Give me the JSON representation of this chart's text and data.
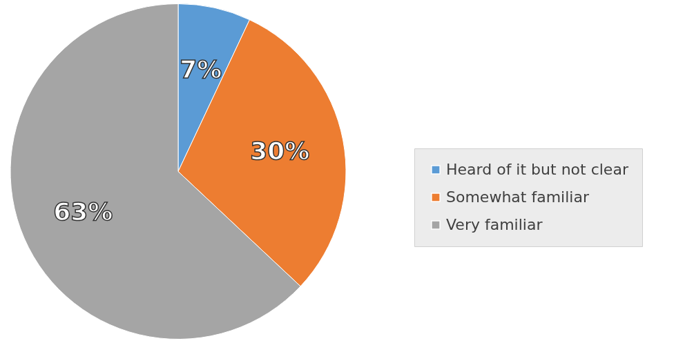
{
  "chart_data": {
    "type": "pie",
    "categories": [
      "Heard of it but not clear",
      "Somewhat familiar",
      "Very familiar"
    ],
    "values": [
      7,
      30,
      63
    ],
    "colors": [
      "#5b9bd5",
      "#ed7d31",
      "#a5a5a5"
    ],
    "value_labels": [
      "7%",
      "30%",
      "63%"
    ],
    "legend": "right"
  }
}
